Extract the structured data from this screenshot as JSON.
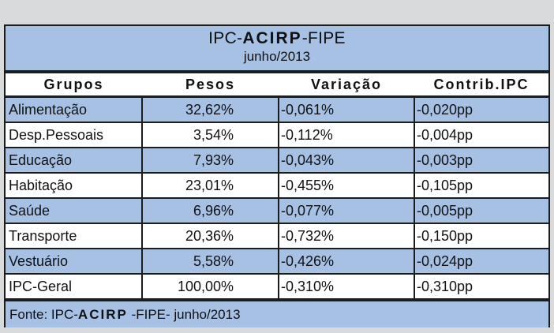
{
  "title_parts": {
    "prefix": "IPC-",
    "bold": "ACIRP",
    "suffix": "-FIPE"
  },
  "subtitle": "junho/2013",
  "chart_data": {
    "type": "table",
    "columns": [
      "Grupos",
      "Pesos",
      "Variação",
      "Contrib.IPC"
    ],
    "rows": [
      [
        "Alimentação",
        "32,62%",
        "-0,061%",
        "-0,020pp"
      ],
      [
        "Desp.Pessoais",
        "3,54%",
        "-0,112%",
        "-0,004pp"
      ],
      [
        "Educação",
        "7,93%",
        "-0,043%",
        "-0,003pp"
      ],
      [
        "Habitação",
        "23,01%",
        "-0,455%",
        "-0,105pp"
      ],
      [
        "Saúde",
        "6,96%",
        "-0,077%",
        "-0,005pp"
      ],
      [
        "Transporte",
        "20,36%",
        "-0,732%",
        "-0,150pp"
      ],
      [
        "Vestuário",
        "5,58%",
        "-0,426%",
        "-0,024pp"
      ],
      [
        "IPC-Geral",
        "100,00%",
        "-0,310%",
        "-0,310pp"
      ]
    ]
  },
  "source_parts": {
    "prefix": "Fonte: IPC-",
    "bold": "ACIRP",
    "suffix": " -FIPE- junho/2013"
  },
  "colors": {
    "row_blue": "#a6c1e4",
    "row_white": "#ffffff",
    "border": "#1c1c1c",
    "background": "#d9dadb"
  }
}
